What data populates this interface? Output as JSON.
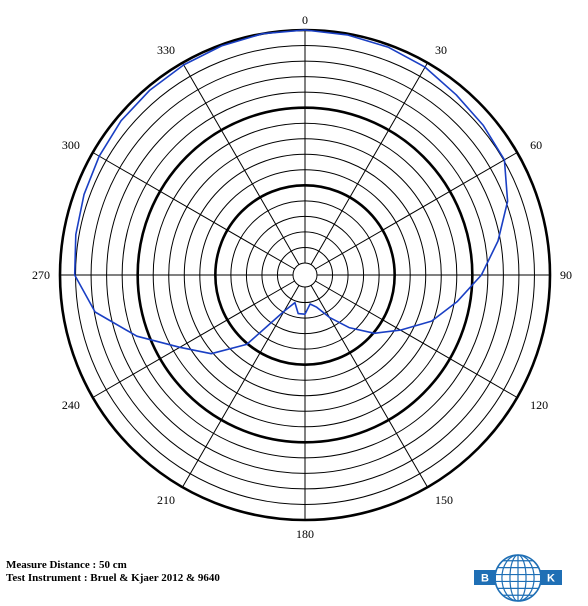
{
  "chart_data": {
    "type": "polar-line",
    "angle_labels": [
      "0",
      "30",
      "60",
      "90",
      "120",
      "150",
      "180",
      "210",
      "240",
      "270",
      "300",
      "330"
    ],
    "radial_rings": 15,
    "bold_rings": [
      5,
      10,
      15
    ],
    "series": [
      {
        "color": "#1a3fc4",
        "angle_step_deg": 10,
        "r_fraction": [
          1.0,
          0.995,
          0.99,
          0.98,
          0.96,
          0.95,
          0.94,
          0.88,
          0.8,
          0.72,
          0.63,
          0.55,
          0.45,
          0.37,
          0.28,
          0.2,
          0.14,
          0.12,
          0.16,
          0.16,
          0.12,
          0.17,
          0.37,
          0.5,
          0.59,
          0.73,
          0.87,
          0.94,
          0.95,
          0.96,
          0.97,
          0.98,
          0.985,
          0.99,
          0.995,
          1.0
        ]
      }
    ]
  },
  "footer": {
    "measure_distance": "Measure Distance : 50 cm",
    "test_instrument": "Test Instrument : Bruel & Kjaer 2012 & 9640"
  },
  "logo": {
    "left_letter": "B",
    "right_letter": "K",
    "color": "#1f6fb5"
  }
}
